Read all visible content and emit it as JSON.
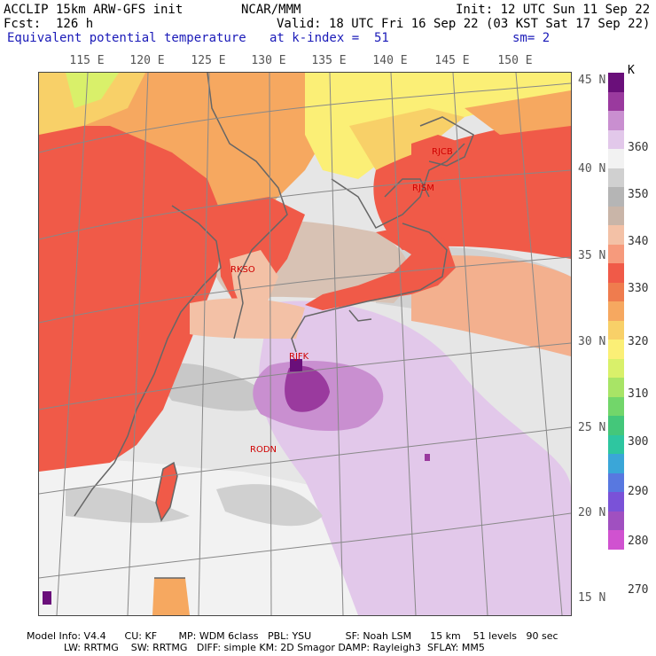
{
  "header": {
    "line1_left": "ACCLIP 15km ARW-GFS init",
    "line1_mid": "NCAR/MMM",
    "line1_right": "Init: 12 UTC Sun 11 Sep 22",
    "line2_left": "Fcst:  126 h",
    "line2_right": "Valid: 18 UTC Fri 16 Sep 22 (03 KST Sat 17 Sep 22)",
    "line3_left": "Equivalent potential temperature",
    "line3_mid": "at k-index =  51",
    "line3_right": "sm= 2"
  },
  "lon_labels": [
    "115 E",
    "120 E",
    "125 E",
    "130 E",
    "135 E",
    "140 E",
    "145 E",
    "150 E"
  ],
  "lat_labels": [
    "45 N",
    "40 N",
    "35 N",
    "30 N",
    "25 N",
    "20 N",
    "15 N"
  ],
  "stations": [
    "RJCB",
    "RJSM",
    "RKSO",
    "RJFK",
    "RODN"
  ],
  "colorbar": {
    "unit": "K",
    "labels": [
      "360",
      "350",
      "340",
      "330",
      "320",
      "310",
      "300",
      "290",
      "280",
      "270"
    ],
    "colors": [
      "#6a0f7a",
      "#9a3a9e",
      "#c98fd0",
      "#e2c8ea",
      "#f2f2f2",
      "#d0d0d0",
      "#b5b5b5",
      "#c9b5a8",
      "#f3c1a6",
      "#f69a7c",
      "#f05a48",
      "#ef7c4e",
      "#f6a860",
      "#f8d068",
      "#fbef76",
      "#d9f06a",
      "#a8e466",
      "#72d66a",
      "#44c77a",
      "#2ec6a0",
      "#3aa6d8",
      "#5878e0",
      "#7a52d8",
      "#a050c0",
      "#d052d0"
    ]
  },
  "footer": {
    "line1": "Model Info: V4.4      CU: KF       MP: WDM 6class   PBL: YSU           SF: Noah LSM      15 km    51 levels   90 sec",
    "line2": "            LW: RRTMG    SW: RRTMG   DIFF: simple KM: 2D Smagor DAMP: Rayleigh3  SFLAY: MM5"
  }
}
